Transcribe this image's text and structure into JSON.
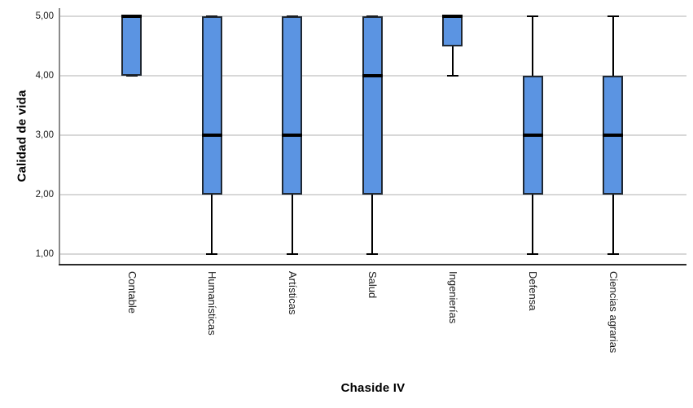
{
  "chart_data": {
    "type": "boxplot",
    "title": "",
    "xlabel": "Chaside IV",
    "ylabel": "Calidad de vida",
    "ylim": [
      1,
      5
    ],
    "grid": true,
    "legend": false,
    "yticks": [
      {
        "value": 5,
        "label": "5,00"
      },
      {
        "value": 4,
        "label": "4,00"
      },
      {
        "value": 3,
        "label": "3,00"
      },
      {
        "value": 2,
        "label": "2,00"
      },
      {
        "value": 1,
        "label": "1,00"
      }
    ],
    "categories": [
      "Contable",
      "Humanísticas",
      "Artísticas",
      "Salud",
      "Ingenierías",
      "Defensa",
      "Ciencias agrarias"
    ],
    "boxes": [
      {
        "category": "Contable",
        "whisker_low": 4,
        "q1": 4,
        "median": 5,
        "q3": 5,
        "whisker_high": 5
      },
      {
        "category": "Humanísticas",
        "whisker_low": 1,
        "q1": 2,
        "median": 3,
        "q3": 5,
        "whisker_high": 5
      },
      {
        "category": "Artísticas",
        "whisker_low": 1,
        "q1": 2,
        "median": 3,
        "q3": 5,
        "whisker_high": 5
      },
      {
        "category": "Salud",
        "whisker_low": 1,
        "q1": 2,
        "median": 4,
        "q3": 5,
        "whisker_high": 5
      },
      {
        "category": "Ingenierías",
        "whisker_low": 4,
        "q1": 4.5,
        "median": 5,
        "q3": 5,
        "whisker_high": 5
      },
      {
        "category": "Defensa",
        "whisker_low": 1,
        "q1": 2,
        "median": 3,
        "q3": 4,
        "whisker_high": 5
      },
      {
        "category": "Ciencias agrarias",
        "whisker_low": 1,
        "q1": 2,
        "median": 3,
        "q3": 4,
        "whisker_high": 5
      }
    ],
    "category_label_rotation_deg": 90,
    "colors": {
      "box_fill": "#5B94E2",
      "box_border": "#1F2833",
      "median": "#000000",
      "whisker": "#000000",
      "gridline": "#D8D8D8",
      "y_axis": "#8A8A8A",
      "x_axis": "#2B2B2B",
      "background": "#FFFFFF",
      "text": "#000000"
    }
  }
}
